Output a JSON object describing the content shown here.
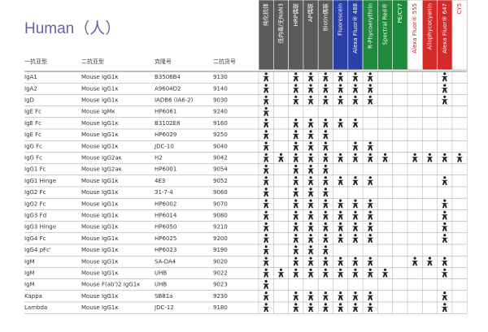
{
  "title": "Human（人）",
  "columns": [
    "一抗亚型",
    "二抗亚型",
    "克隆号",
    "二抗货号"
  ],
  "formats": [
    {
      "label": "纯化抗体",
      "color": "#5a5a5a"
    },
    {
      "label": "低内毒/无NaN3",
      "color": "#5a5a5a"
    },
    {
      "label": "HRP偶联",
      "color": "#5a5a5a"
    },
    {
      "label": "AP偶联",
      "color": "#5a5a5a"
    },
    {
      "label": "Biotin偶联",
      "color": "#5a5a5a"
    },
    {
      "label": "Fluorescein",
      "color": "#2a3fa8"
    },
    {
      "label": "Alexa Fluor® 488",
      "color": "#2a3fa8"
    },
    {
      "label": "R-Phycoerythrin",
      "color": "#1e8a3c"
    },
    {
      "label": "Spectral Red®",
      "color": "#1e8a3c"
    },
    {
      "label": "PE/CY7",
      "color": "#1e8a3c"
    },
    {
      "label": "Alexa Fluor® 555",
      "color": "#ffffff"
    },
    {
      "label": "Allophycocyanin",
      "color": "#d42a2a"
    },
    {
      "label": "Alexa Fluor® 647",
      "color": "#d42a2a"
    },
    {
      "label": "CY5",
      "color": "#ffffff"
    }
  ],
  "rows": [
    {
      "cells": [
        "IgA1",
        "Mouse IgG1κ",
        "B3506B4",
        "9130"
      ],
      "available": [
        0,
        2,
        3,
        4,
        5,
        6,
        7,
        12
      ]
    },
    {
      "cells": [
        "IgA2",
        "Mouse IgG1κ",
        "A9604D2",
        "9140"
      ],
      "available": [
        0,
        2,
        3,
        4,
        5,
        6,
        7,
        12
      ]
    },
    {
      "cells": [
        "IgD",
        "Mouse IgG1κ",
        "IADB6 (IA6-2)",
        "9030"
      ],
      "available": [
        0,
        2,
        3,
        4,
        5,
        6,
        7,
        12
      ]
    },
    {
      "cells": [
        "IgE Fc",
        "Mouse IgMκ",
        "HP6061",
        "9240"
      ],
      "available": [
        0
      ]
    },
    {
      "cells": [
        "IgE Fc",
        "Mouse IgG1κ",
        "B3102E8",
        "9160"
      ],
      "available": [
        0,
        2,
        3,
        4,
        5,
        6
      ]
    },
    {
      "cells": [
        "IgE Fc",
        "Mouse IgG1κ",
        "HP6029",
        "9250"
      ],
      "available": [
        0,
        2,
        3,
        4
      ]
    },
    {
      "cells": [
        "IgG Fc",
        "Mouse IgG1κ",
        "JDC-10",
        "9040"
      ],
      "available": [
        0,
        2,
        3,
        4,
        6,
        7
      ]
    },
    {
      "cells": [
        "IgG Fc",
        "Mouse IgG2aκ",
        "H2",
        "9042"
      ],
      "available": [
        0,
        1,
        2,
        3,
        4,
        5,
        6,
        7,
        8,
        10,
        11,
        12,
        13
      ]
    },
    {
      "cells": [
        "IgG1 Fc",
        "Mouse IgG2aκ",
        "HP6001",
        "9054"
      ],
      "available": [
        0,
        2,
        3,
        4
      ]
    },
    {
      "cells": [
        "IgG1 Hinge",
        "Mouse IgG1κ",
        "4E3",
        "9052"
      ],
      "available": [
        0,
        2,
        3,
        4,
        5,
        6,
        7,
        12
      ]
    },
    {
      "cells": [
        "IgG2 Fc",
        "Mouse IgG1κ",
        "31-7-4",
        "9060"
      ],
      "available": [
        0,
        2,
        3,
        4
      ]
    },
    {
      "cells": [
        "IgG2 Fc",
        "Mouse IgG1κ",
        "HP6002",
        "9070"
      ],
      "available": [
        0,
        2,
        3,
        4,
        5,
        6,
        7,
        12
      ]
    },
    {
      "cells": [
        "IgG3 Fd",
        "Mouse IgG1κ",
        "HP6014",
        "9080"
      ],
      "available": [
        0,
        2,
        3,
        4,
        5,
        6,
        7,
        12
      ]
    },
    {
      "cells": [
        "IgG3 Hinge",
        "Mouse IgG1κ",
        "HP6050",
        "9210"
      ],
      "available": [
        0,
        2,
        3,
        4,
        5,
        6,
        7,
        12
      ]
    },
    {
      "cells": [
        "IgG4 Fc",
        "Mouse IgG1κ",
        "HP6025",
        "9200"
      ],
      "available": [
        0,
        2,
        3,
        4,
        5,
        6,
        7,
        12
      ]
    },
    {
      "cells": [
        "IgG4 pFc'",
        "Mouse IgG1κ",
        "HP6023",
        "9190"
      ],
      "available": [
        0,
        2,
        3,
        4
      ]
    },
    {
      "cells": [
        "IgM",
        "Mouse IgG1κ",
        "SA-DA4",
        "9020"
      ],
      "available": [
        0,
        2,
        3,
        4,
        5,
        6,
        7,
        10,
        11,
        12
      ]
    },
    {
      "cells": [
        "IgM",
        "Mouse IgG1κ",
        "UHB",
        "9022"
      ],
      "available": [
        0,
        1,
        2,
        3,
        4,
        5,
        6,
        7,
        8,
        12
      ]
    },
    {
      "cells": [
        "IgM",
        "Mouse F(ab')2 IgG1κ",
        "UHB",
        "9023"
      ],
      "available": [
        0
      ]
    },
    {
      "cells": [
        "Kappa",
        "Mouse IgG1κ",
        "SB81a",
        "9230"
      ],
      "available": [
        0,
        2,
        3,
        4,
        5,
        6,
        7,
        12
      ]
    },
    {
      "cells": [
        "Lambda",
        "Mouse IgG1κ",
        "JDC-12",
        "9180"
      ],
      "available": [
        0,
        2,
        3,
        4,
        5,
        6,
        7,
        12
      ]
    }
  ]
}
